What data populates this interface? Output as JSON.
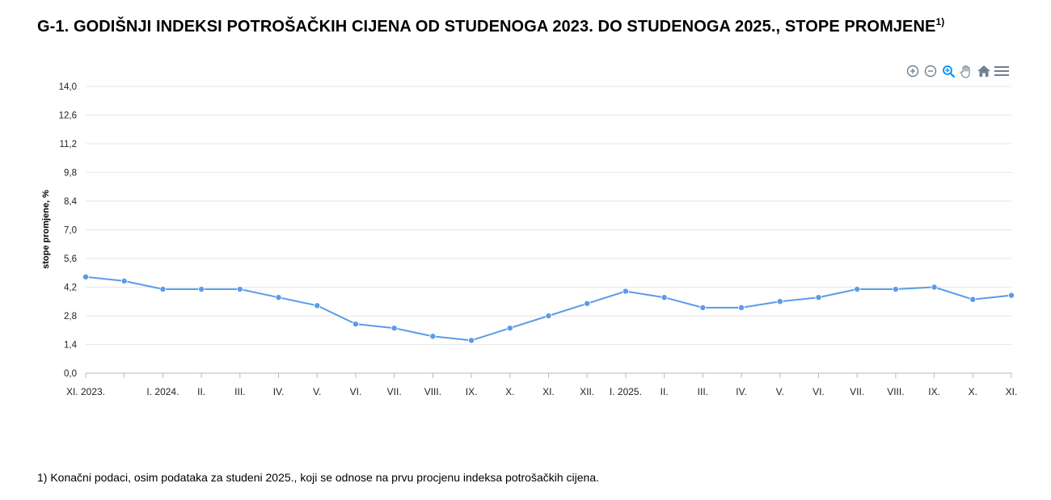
{
  "title": {
    "text": "G-1. GODIŠNJI INDEKSI POTROŠAČKIH CIJENA OD STUDENOGA 2023. DO STUDENOGA 2025., STOPE PROMJENE",
    "superscript": "1)"
  },
  "toolbar": {
    "icons": [
      "zoom-in-icon",
      "zoom-out-icon",
      "selection-zoom-icon",
      "pan-hand-icon",
      "reset-home-icon",
      "menu-icon"
    ],
    "accent_color": "#008FFB",
    "icon_color": "#6E8192"
  },
  "footnote": "1) Konačni podaci, osim podataka za studeni 2025., koji se odnose na prvu procjenu indeksa potrošačkih cijena.",
  "chart_data": {
    "type": "line",
    "title": "G-1. GODIŠNJI INDEKSI POTROŠAČKIH CIJENA OD STUDENOGA 2023. DO STUDENOGA 2025., STOPE PROMJENE",
    "xlabel": "",
    "ylabel": "stope promjene, %",
    "ylim": [
      0,
      14
    ],
    "yticks": [
      "0,0",
      "1,4",
      "2,8",
      "4,2",
      "5,6",
      "7,0",
      "8,4",
      "9,8",
      "11,2",
      "12,6",
      "14,0"
    ],
    "x_tick_labels": [
      "XI. 2023.",
      "",
      "I. 2024.",
      "II.",
      "III.",
      "IV.",
      "V.",
      "VI.",
      "VII.",
      "VIII.",
      "IX.",
      "X.",
      "XI.",
      "XII.",
      "I. 2025.",
      "II.",
      "III.",
      "IV.",
      "V.",
      "VI.",
      "VII.",
      "VIII.",
      "IX.",
      "X.",
      "XI."
    ],
    "grid": true,
    "legend": "none",
    "line_color": "#5B9BE8",
    "series": [
      {
        "values": [
          4.7,
          4.5,
          4.1,
          4.1,
          4.1,
          3.7,
          3.3,
          2.4,
          2.2,
          1.8,
          1.6,
          2.2,
          2.8,
          3.4,
          4.0,
          3.7,
          3.2,
          3.2,
          3.5,
          3.7,
          4.1,
          4.1,
          4.2,
          3.6,
          3.8
        ]
      }
    ]
  }
}
